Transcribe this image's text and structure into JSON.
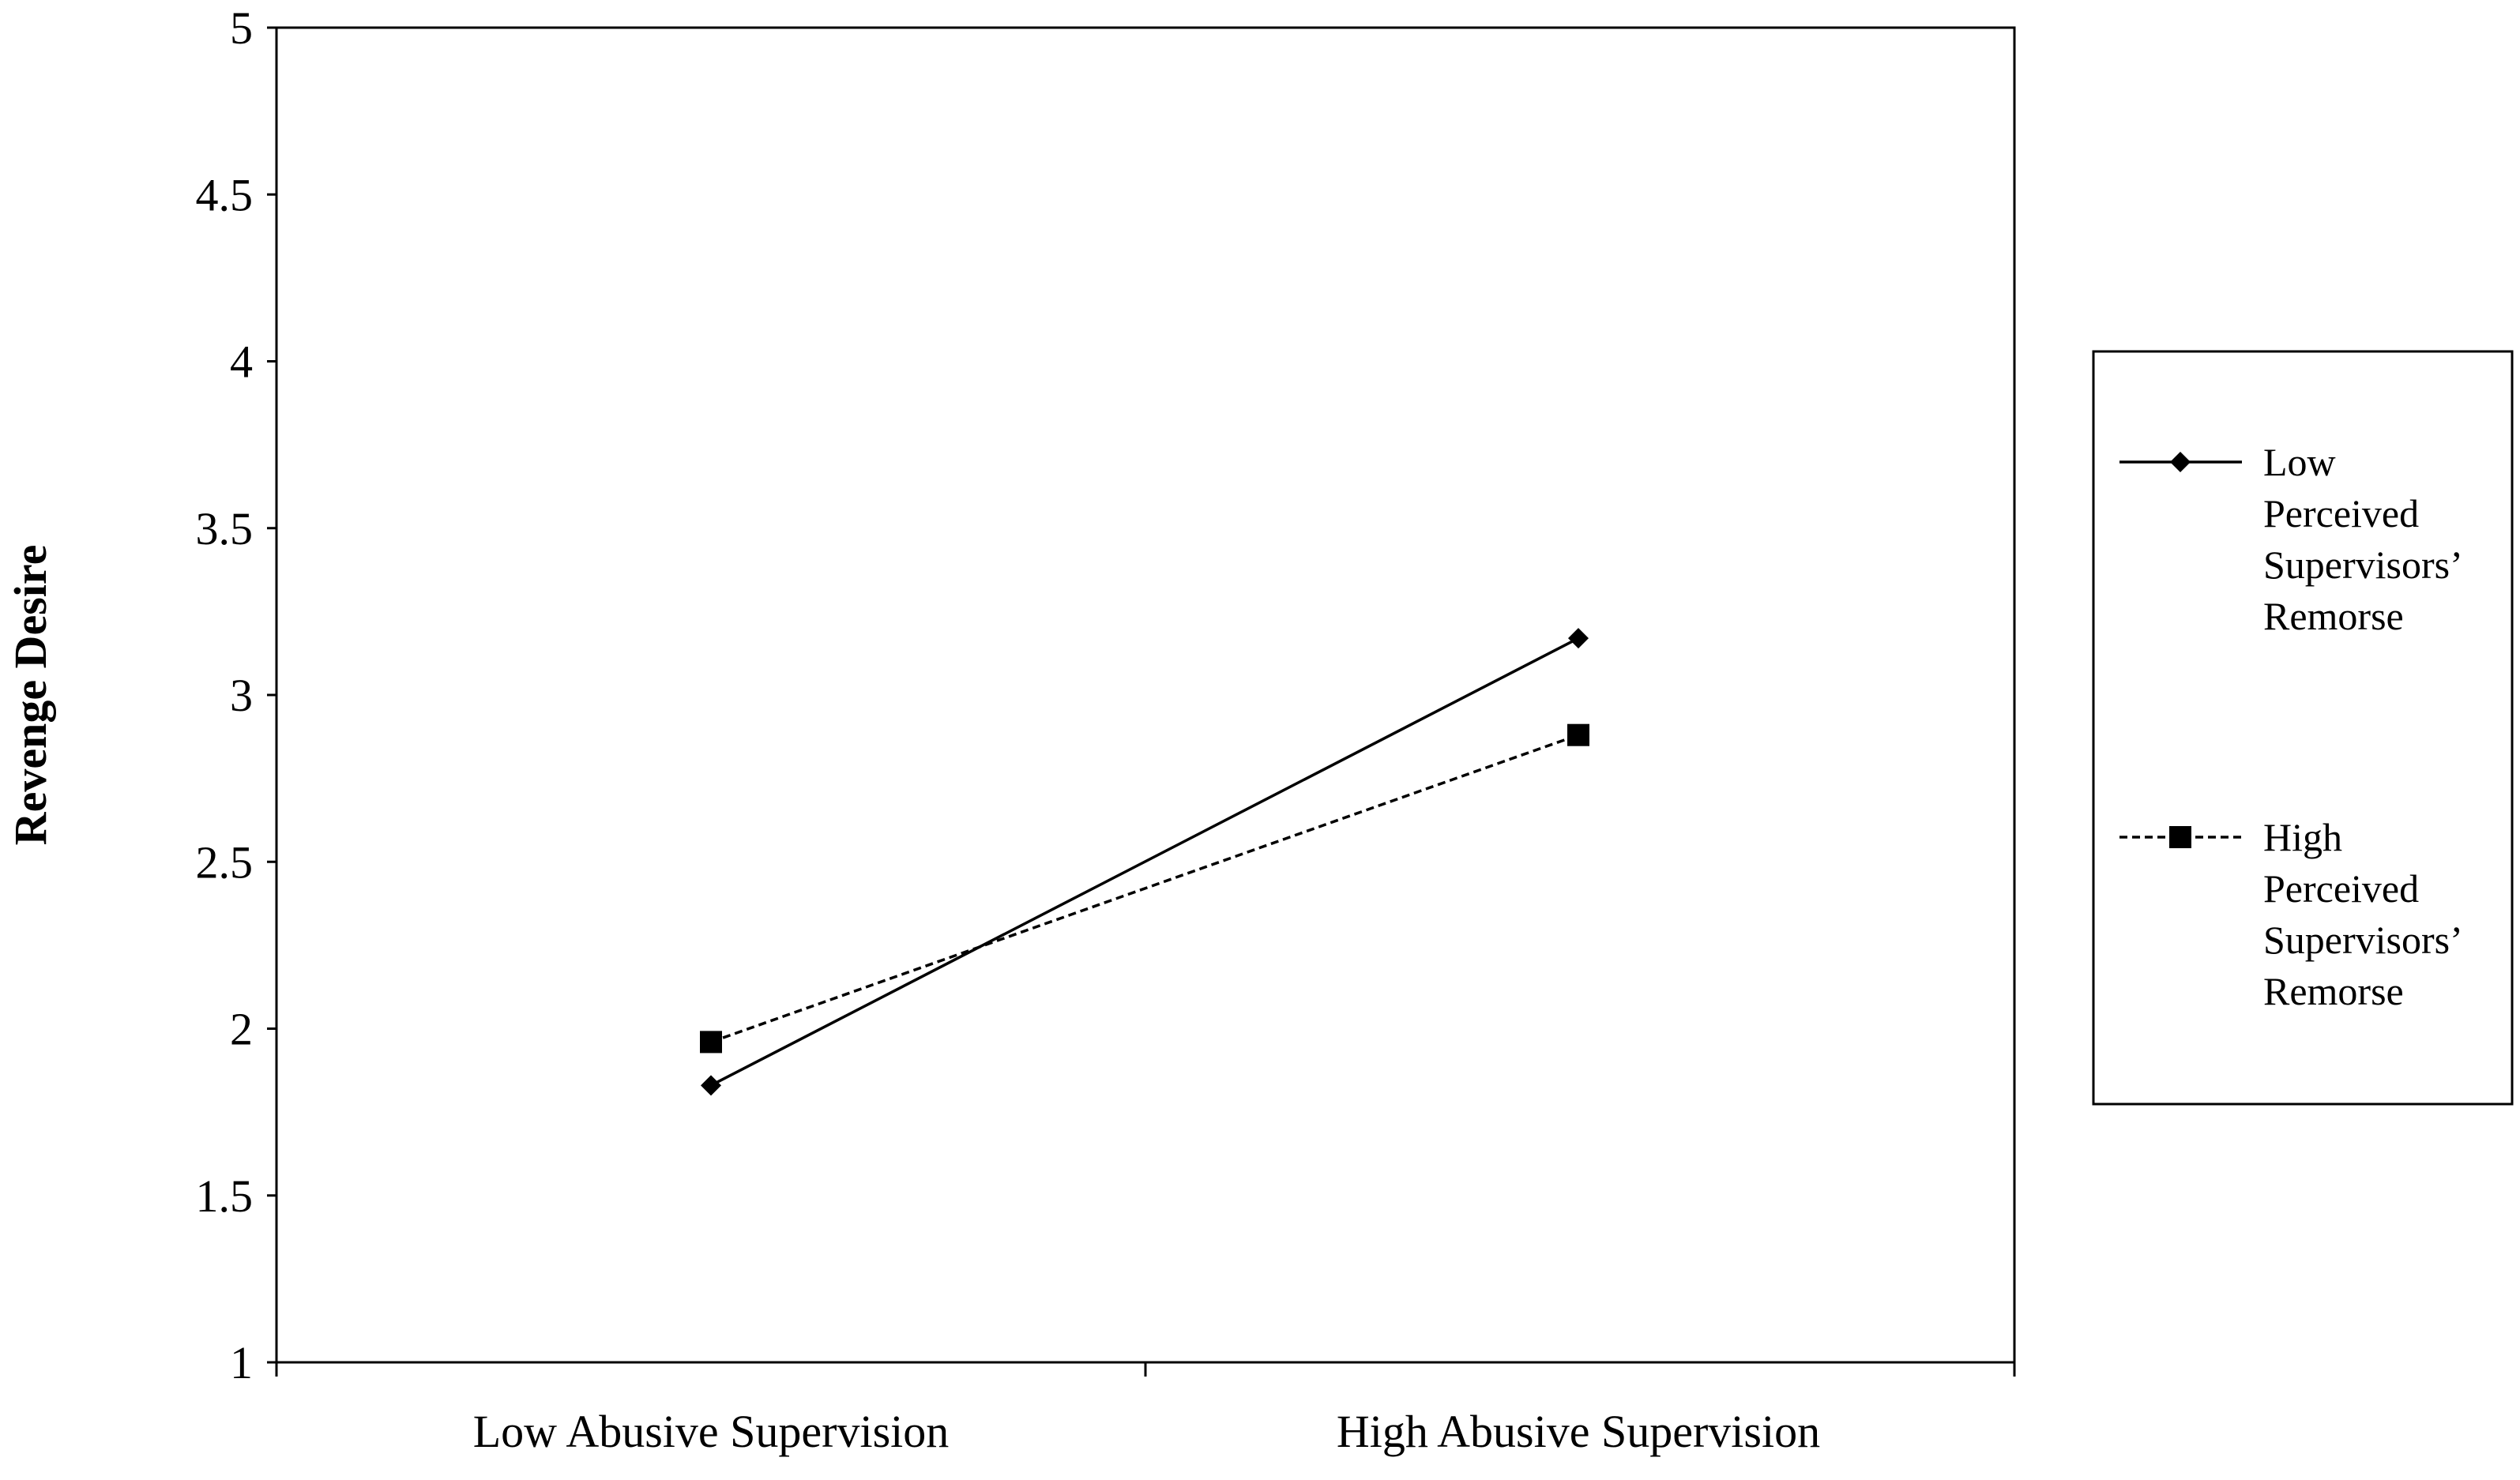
{
  "chart_data": {
    "type": "line",
    "title": "",
    "xlabel": "",
    "ylabel": "Revenge Desire",
    "categories": [
      "Low Abusive Supervision",
      "High Abusive Supervision"
    ],
    "ylim": [
      1,
      5
    ],
    "yticks": [
      "1",
      "1.5",
      "2",
      "2.5",
      "3",
      "3.5",
      "4",
      "4.5",
      "5"
    ],
    "grid": false,
    "legend_position": "right",
    "series": [
      {
        "name": "Low Perceived Supervisors' Remorse",
        "name_lines": [
          "Low",
          "Perceived",
          "Supervisors’",
          "Remorse"
        ],
        "values": [
          1.83,
          3.17
        ],
        "marker": "diamond",
        "line_style": "solid",
        "color": "#000000"
      },
      {
        "name": "High Perceived Supervisors' Remorse",
        "name_lines": [
          "High",
          "Perceived",
          "Supervisors’",
          "Remorse"
        ],
        "values": [
          1.96,
          2.88
        ],
        "marker": "square",
        "line_style": "dashed",
        "color": "#000000"
      }
    ]
  }
}
